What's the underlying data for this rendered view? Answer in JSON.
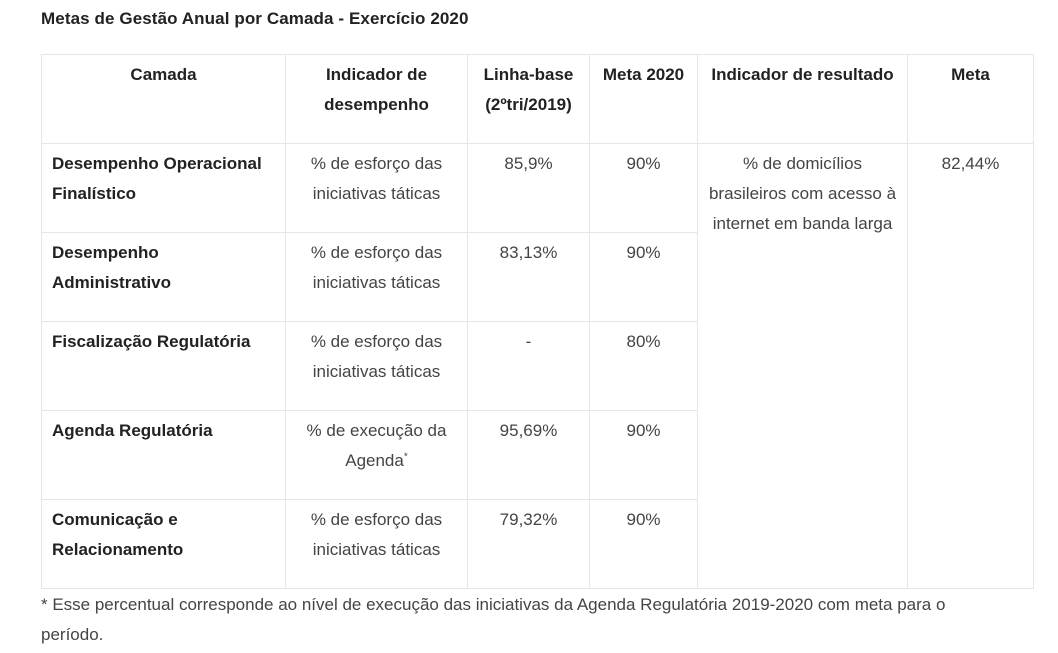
{
  "title": "Metas de Gestão Anual por Camada - Exercício 2020",
  "headers": {
    "camada": "Camada",
    "indicador_desempenho": "Indicador de desempenho",
    "linha_base": "Linha-base (2ºtri/2019)",
    "meta_2020": "Meta 2020",
    "indicador_resultado": "Indicador de resultado",
    "meta": "Meta"
  },
  "rows": [
    {
      "camada": "Desempenho Operacional Finalístico",
      "indicador": "% de esforço das iniciativas táticas",
      "indicador_sup": "",
      "linha_base": "85,9%",
      "meta_2020": "90%"
    },
    {
      "camada": "Desempenho Administrativo",
      "indicador": "% de esforço das iniciativas táticas",
      "indicador_sup": "",
      "linha_base": "83,13%",
      "meta_2020": "90%"
    },
    {
      "camada": "Fiscalização Regulatória",
      "indicador": "% de esforço das iniciativas táticas",
      "indicador_sup": "",
      "linha_base": "-",
      "meta_2020": "80%"
    },
    {
      "camada": "Agenda Regulatória",
      "indicador": "% de execução da Agenda",
      "indicador_sup": "*",
      "linha_base": "95,69%",
      "meta_2020": "90%"
    },
    {
      "camada": "Comunicação e Relacionamento",
      "indicador": "% de esforço das iniciativas táticas",
      "indicador_sup": "",
      "linha_base": "79,32%",
      "meta_2020": "90%"
    }
  ],
  "resultado": {
    "indicador": "% de domicílios brasileiros com acesso à internet em banda larga",
    "meta": "82,44%"
  },
  "footnote": "* Esse percentual corresponde ao nível de execução das iniciativas da Agenda Regulatória 2019-2020 com meta para o período."
}
